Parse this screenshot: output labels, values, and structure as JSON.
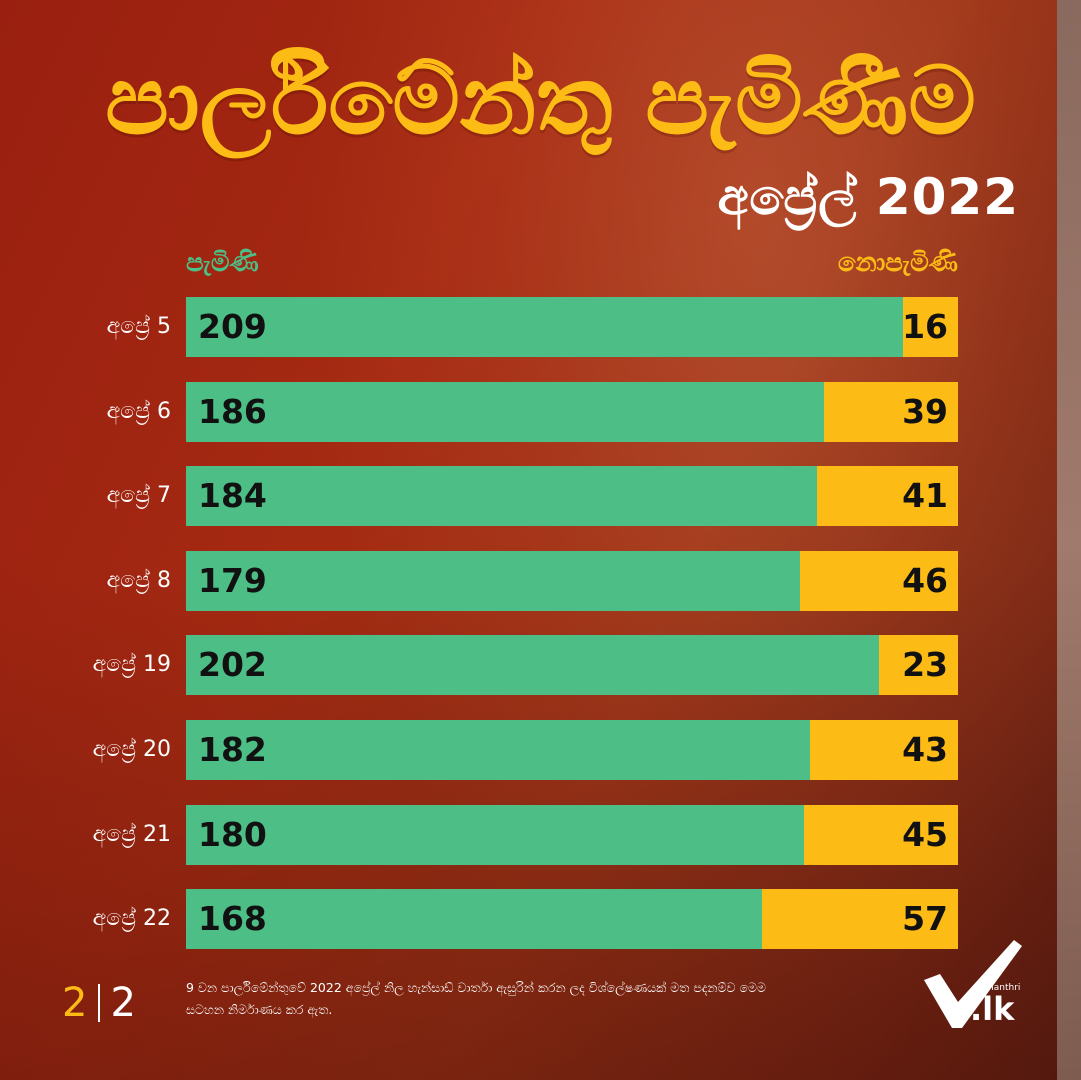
{
  "title": "පාර්ලිමේන්තු පැමිණීම",
  "subtitle": "අප්‍රේල් 2022",
  "legend": {
    "present": "පැමිණි",
    "absent": "නොපැමිණි"
  },
  "colors": {
    "present": "#4cbe86",
    "absent": "#fdbb16",
    "title": "#fdbb16",
    "background": "#9a1f10"
  },
  "chart_data": {
    "type": "bar",
    "orientation": "horizontal",
    "stacked": true,
    "categories": [
      "අප්‍රේ 5",
      "අප්‍රේ 6",
      "අප්‍රේ 7",
      "අප්‍රේ 8",
      "අප්‍රේ 19",
      "අප්‍රේ 20",
      "අප්‍රේ 21",
      "අප්‍රේ 22"
    ],
    "series": [
      {
        "name": "පැමිණි",
        "values": [
          209,
          186,
          184,
          179,
          202,
          182,
          180,
          168
        ]
      },
      {
        "name": "නොපැමිණි",
        "values": [
          16,
          39,
          41,
          46,
          23,
          43,
          45,
          57
        ]
      }
    ],
    "total": 225,
    "legend_position": "top",
    "grid": false
  },
  "footer": {
    "page_current": "2",
    "page_total": "2",
    "note": "9 වන පාර්ලිමේන්තුවේ 2022 අප්‍රේල් නිල හැන්සාඩ් වාර්තා ඇසුරින් කරන ලද විශ්ලේෂණයක් මත පදනම්ව මෙම සටහන නිර්මාණය කර ඇත.",
    "logo_brand": "Manthri",
    "logo_domain": ".lk"
  }
}
